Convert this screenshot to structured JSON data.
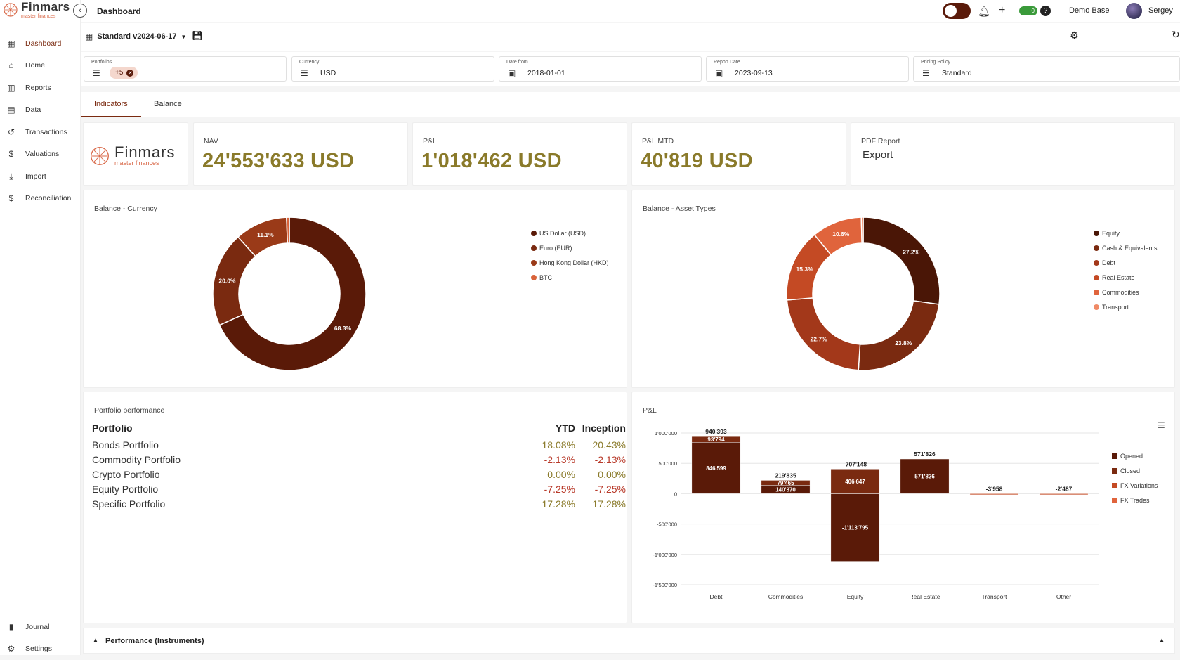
{
  "app": {
    "logo_text": "Finmars",
    "logo_sub": "master finances",
    "page_title": "Dashboard"
  },
  "sidebar": {
    "items": [
      {
        "label": "Dashboard",
        "icon": "dashboard-icon",
        "active": true
      },
      {
        "label": "Home",
        "icon": "home-icon"
      },
      {
        "label": "Reports",
        "icon": "reports-icon"
      },
      {
        "label": "Data",
        "icon": "data-icon"
      },
      {
        "label": "Transactions",
        "icon": "transactions-icon"
      },
      {
        "label": "Valuations",
        "icon": "valuations-icon"
      },
      {
        "label": "Import",
        "icon": "import-icon"
      },
      {
        "label": "Reconciliation",
        "icon": "reconciliation-icon"
      }
    ],
    "bottom_items": [
      {
        "label": "Journal",
        "icon": "journal-icon"
      },
      {
        "label": "Settings",
        "icon": "settings-icon"
      }
    ]
  },
  "topbar": {
    "workspace": "Demo Base",
    "user": "Sergey",
    "status_badge": "0"
  },
  "toolbar": {
    "layout_name": "Standard v2024-06-17"
  },
  "filters": {
    "portfolios": {
      "label": "Portfolios",
      "chip": "+5"
    },
    "currency": {
      "label": "Currency",
      "value": "USD"
    },
    "date_from": {
      "label": "Date from",
      "value": "2018-01-01"
    },
    "report_date": {
      "label": "Report Date",
      "value": "2023-09-13"
    },
    "pricing_policy": {
      "label": "Pricing Policy",
      "value": "Standard"
    }
  },
  "tabs": [
    "Indicators",
    "Balance"
  ],
  "kpis": {
    "nav": {
      "label": "NAV",
      "value": "24'553'633 USD"
    },
    "pnl": {
      "label": "P&L",
      "value": "1'018'462 USD"
    },
    "pnl_mtd": {
      "label": "P&L MTD",
      "value": "40'819 USD"
    },
    "pdf": {
      "label": "PDF Report",
      "action": "Export"
    }
  },
  "cards": {
    "balance_currency": "Balance - Currency",
    "balance_asset": "Balance - Asset Types",
    "portfolio_perf": "Portfolio performance",
    "pnl": "P&L",
    "perf_instruments": "Performance (Instruments)"
  },
  "portfolio_table": {
    "headers": [
      "Portfolio",
      "YTD",
      "Inception"
    ],
    "rows": [
      {
        "name": "Bonds Portfolio",
        "ytd": "18.08%",
        "inception": "20.43%",
        "sign": "pos"
      },
      {
        "name": "Commodity Portfolio",
        "ytd": "-2.13%",
        "inception": "-2.13%",
        "sign": "neg"
      },
      {
        "name": "Crypto Portfolio",
        "ytd": "0.00%",
        "inception": "0.00%",
        "sign": "pos"
      },
      {
        "name": "Equity Portfolio",
        "ytd": "-7.25%",
        "inception": "-7.25%",
        "sign": "neg"
      },
      {
        "name": "Specific Portfolio",
        "ytd": "17.28%",
        "inception": "17.28%",
        "sign": "pos"
      }
    ]
  },
  "chart_data": [
    {
      "type": "pie",
      "title": "Balance - Currency",
      "categories": [
        "US Dollar (USD)",
        "Euro (EUR)",
        "Hong Kong Dollar (HKD)",
        "BTC"
      ],
      "values": [
        68.3,
        20.0,
        11.1,
        0.6
      ],
      "labels": [
        "68.3%",
        "20.0%",
        "11.1%",
        ""
      ],
      "colors": [
        "#5a1a08",
        "#7a2a10",
        "#9a3a18",
        "#d9633a"
      ],
      "legend": "right"
    },
    {
      "type": "pie",
      "title": "Balance - Asset Types",
      "categories": [
        "Equity",
        "Cash & Equivalents",
        "Debt",
        "Real Estate",
        "Commodities",
        "Transport"
      ],
      "values": [
        27.2,
        23.8,
        22.7,
        15.3,
        10.6,
        0.4
      ],
      "labels": [
        "27.2%",
        "23.8%",
        "22.7%",
        "15.3%",
        "10.6%",
        ""
      ],
      "colors": [
        "#4a1606",
        "#7a2a10",
        "#a3381a",
        "#c44a24",
        "#e0643c",
        "#f08a66"
      ],
      "legend": "right"
    },
    {
      "type": "bar",
      "title": "P&L",
      "categories": [
        "Debt",
        "Commodities",
        "Equity",
        "Real Estate",
        "Transport",
        "Other"
      ],
      "series": [
        {
          "name": "Opened",
          "values": [
            846599,
            140370,
            -1113795,
            571826,
            0,
            0
          ],
          "labels": [
            "846'599",
            "140'370",
            "-1'113'795",
            "571'826",
            "",
            ""
          ]
        },
        {
          "name": "Closed",
          "values": [
            93794,
            79465,
            406647,
            0,
            0,
            0
          ],
          "labels": [
            "93'794",
            "79'465",
            "406'647",
            "",
            "",
            ""
          ]
        },
        {
          "name": "FX Variations",
          "values": [
            0,
            0,
            0,
            0,
            -3958,
            -2487
          ],
          "labels": [
            "",
            "",
            "",
            "",
            "",
            ""
          ]
        },
        {
          "name": "FX Trades",
          "values": [
            0,
            0,
            0,
            0,
            0,
            0
          ],
          "labels": [
            "",
            "",
            "",
            "",
            "",
            ""
          ]
        }
      ],
      "totals": [
        "940'393",
        "219'835",
        "-707'148",
        "571'826",
        "-3'958",
        "-2'487"
      ],
      "colors": [
        "#5a1a08",
        "#7a2a10",
        "#c44a24",
        "#e0643c"
      ],
      "yticks": [
        "1'000'000",
        "500'000",
        "0",
        "-500'000",
        "-1'000'000",
        "-1'500'000"
      ],
      "ylim": [
        -1500000,
        1000000
      ],
      "legend": "right"
    }
  ]
}
